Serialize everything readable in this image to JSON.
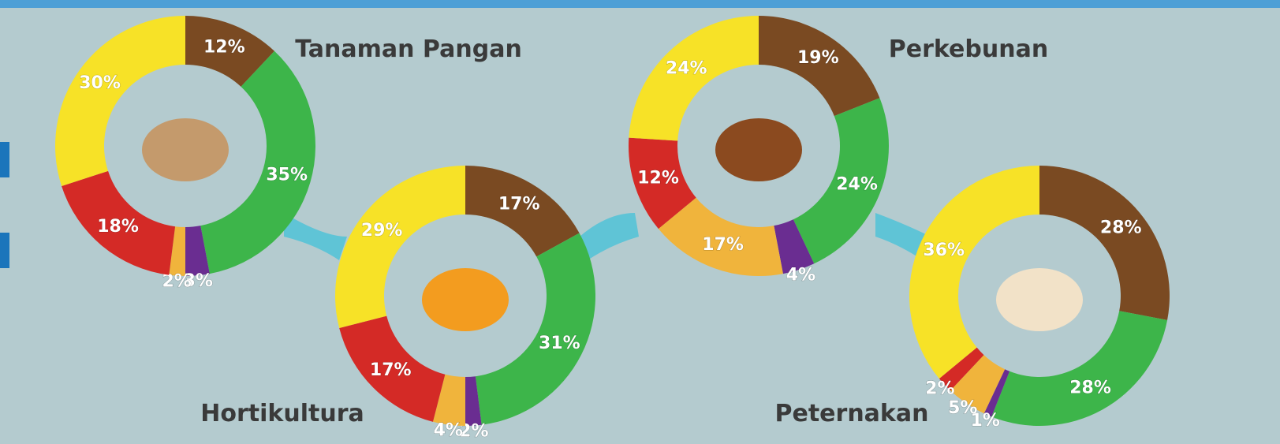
{
  "chart_data": [
    {
      "type": "pie",
      "title": "Tanaman Pangan",
      "values": [
        12,
        35,
        3,
        2,
        18,
        30
      ],
      "value_labels": [
        "12%",
        "35%",
        "3%",
        "2%",
        "18%",
        "30%"
      ],
      "colors": [
        "#7a4a22",
        "#3db54a",
        "#6a2d91",
        "#f0b43c",
        "#d42a26",
        "#f7e227"
      ]
    },
    {
      "type": "pie",
      "title": "Hortikultura",
      "values": [
        17,
        31,
        2,
        4,
        17,
        29
      ],
      "value_labels": [
        "17%",
        "31%",
        "2%",
        "4%",
        "17%",
        "29%"
      ],
      "colors": [
        "#7a4a22",
        "#3db54a",
        "#6a2d91",
        "#f0b43c",
        "#d42a26",
        "#f7e227"
      ]
    },
    {
      "type": "pie",
      "title": "Perkebunan",
      "values": [
        19,
        24,
        4,
        17,
        12,
        24
      ],
      "value_labels": [
        "19%",
        "24%",
        "4%",
        "17%",
        "12%",
        "24%"
      ],
      "colors": [
        "#7a4a22",
        "#3db54a",
        "#6a2d91",
        "#f0b43c",
        "#d42a26",
        "#f7e227"
      ]
    },
    {
      "type": "pie",
      "title": "Peternakan",
      "values": [
        28,
        28,
        1,
        5,
        2,
        36
      ],
      "value_labels": [
        "28%",
        "28%",
        "1%",
        "5%",
        "2%",
        "36%"
      ],
      "colors": [
        "#7a4a22",
        "#3db54a",
        "#6a2d91",
        "#f0b43c",
        "#d42a26",
        "#f7e227"
      ]
    }
  ]
}
